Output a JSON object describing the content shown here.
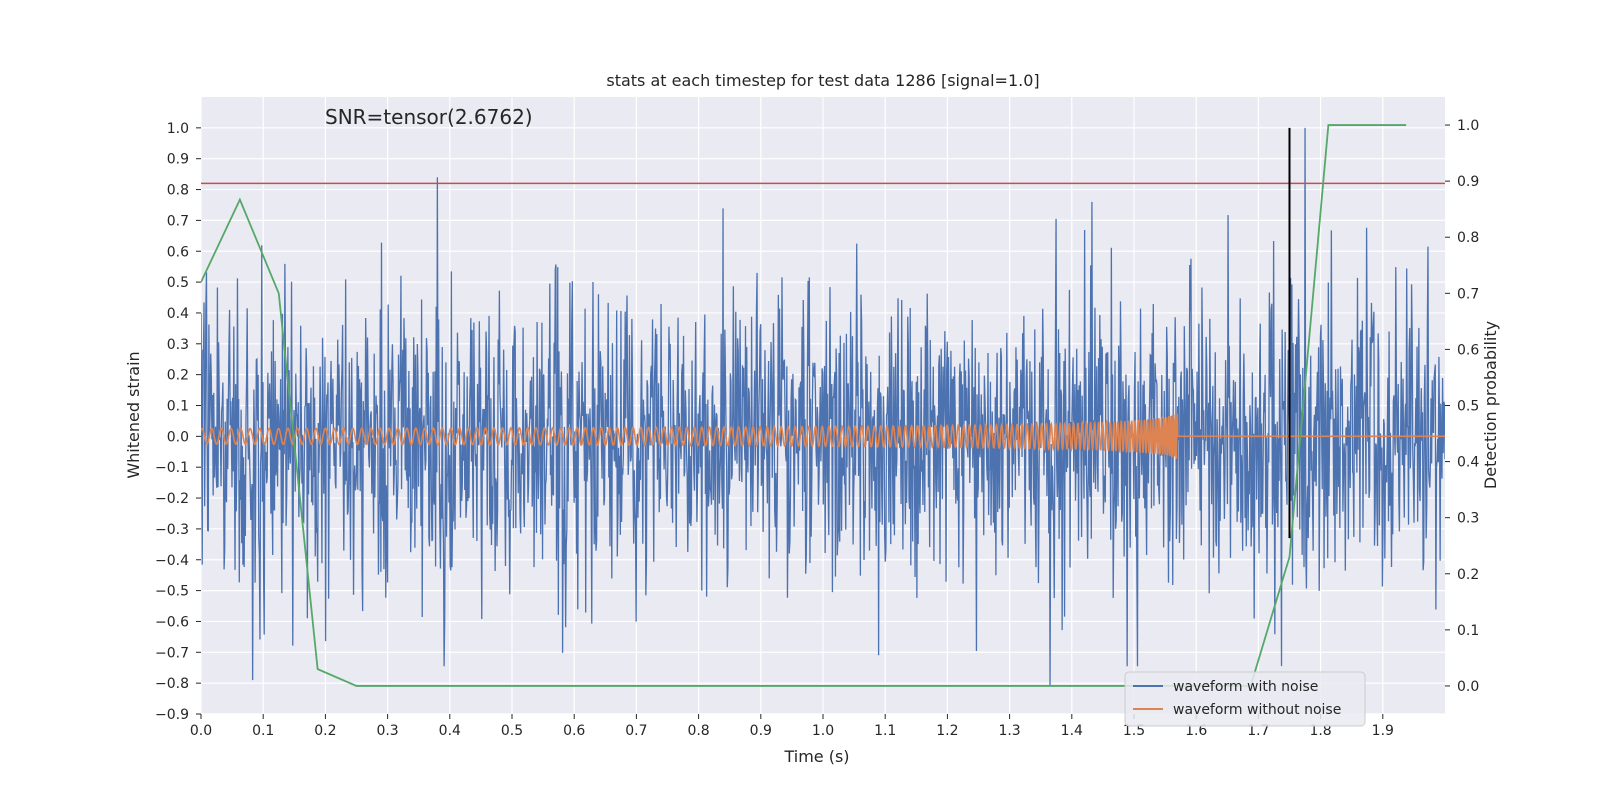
{
  "chart_data": {
    "type": "line",
    "title": "stats at each timestep for test data 1286 [signal=1.0]",
    "xlabel": "Time (s)",
    "ylabel": "Whitened strain",
    "y2label": "Detection probability",
    "annotation": "SNR=tensor(2.6762)",
    "xlim": [
      0.0,
      2.0
    ],
    "ylim": [
      -0.9,
      1.1
    ],
    "y2lim": [
      -0.05,
      1.05
    ],
    "xticks": [
      "0.0",
      "0.1",
      "0.2",
      "0.3",
      "0.4",
      "0.5",
      "0.6",
      "0.7",
      "0.8",
      "0.9",
      "1.0",
      "1.1",
      "1.2",
      "1.3",
      "1.4",
      "1.5",
      "1.6",
      "1.7",
      "1.8",
      "1.9"
    ],
    "yticks": [
      "1.0",
      "0.9",
      "0.8",
      "0.7",
      "0.6",
      "0.5",
      "0.4",
      "0.3",
      "0.2",
      "0.1",
      "0.0",
      "−0.1",
      "−0.2",
      "−0.3",
      "−0.4",
      "−0.5",
      "−0.6",
      "−0.7",
      "−0.8",
      "−0.9"
    ],
    "y2ticks": [
      "1.0",
      "0.9",
      "0.8",
      "0.7",
      "0.6",
      "0.5",
      "0.4",
      "0.3",
      "0.2",
      "0.1",
      "0.0"
    ],
    "grid": true,
    "legend_position": "bottom-right",
    "colors": {
      "noise": "#4c72b0",
      "signal": "#dd8452",
      "probability": "#55a868",
      "threshold": "#c44e52",
      "marker": "#000000",
      "background": "#eaeaf2",
      "grid": "#ffffff"
    },
    "series": [
      {
        "name": "waveform with noise",
        "x_range": [
          0.0,
          2.0
        ],
        "value_range": [
          -0.81,
          1.0
        ],
        "notable_points": [
          {
            "x": 0.083,
            "y": -0.79
          },
          {
            "x": 0.38,
            "y": 0.84
          },
          {
            "x": 1.365,
            "y": -0.81
          },
          {
            "x": 1.775,
            "y": 1.0
          }
        ]
      },
      {
        "name": "waveform without noise",
        "x_range": [
          0.0,
          2.0
        ],
        "chirp_end_time": 1.57,
        "start_amplitude": 0.025,
        "peak_amplitude": 0.1
      },
      {
        "name": "detection probability",
        "axis": "right",
        "x": [
          0.0,
          0.0625,
          0.125,
          0.1875,
          0.25,
          1.375,
          1.4375,
          1.5,
          1.5625,
          1.625,
          1.6875,
          1.75,
          1.8125,
          1.875,
          1.9375
        ],
        "y": [
          0.72,
          0.867,
          0.7,
          0.03,
          0.0,
          0.0,
          0.0,
          0.0,
          0.0,
          0.0,
          0.0,
          0.23,
          1.0,
          1.0,
          1.0
        ]
      }
    ],
    "threshold_y": 0.82,
    "vertical_marker_x": 1.75,
    "vertical_marker_yrange": [
      -0.33,
      1.0
    ]
  }
}
